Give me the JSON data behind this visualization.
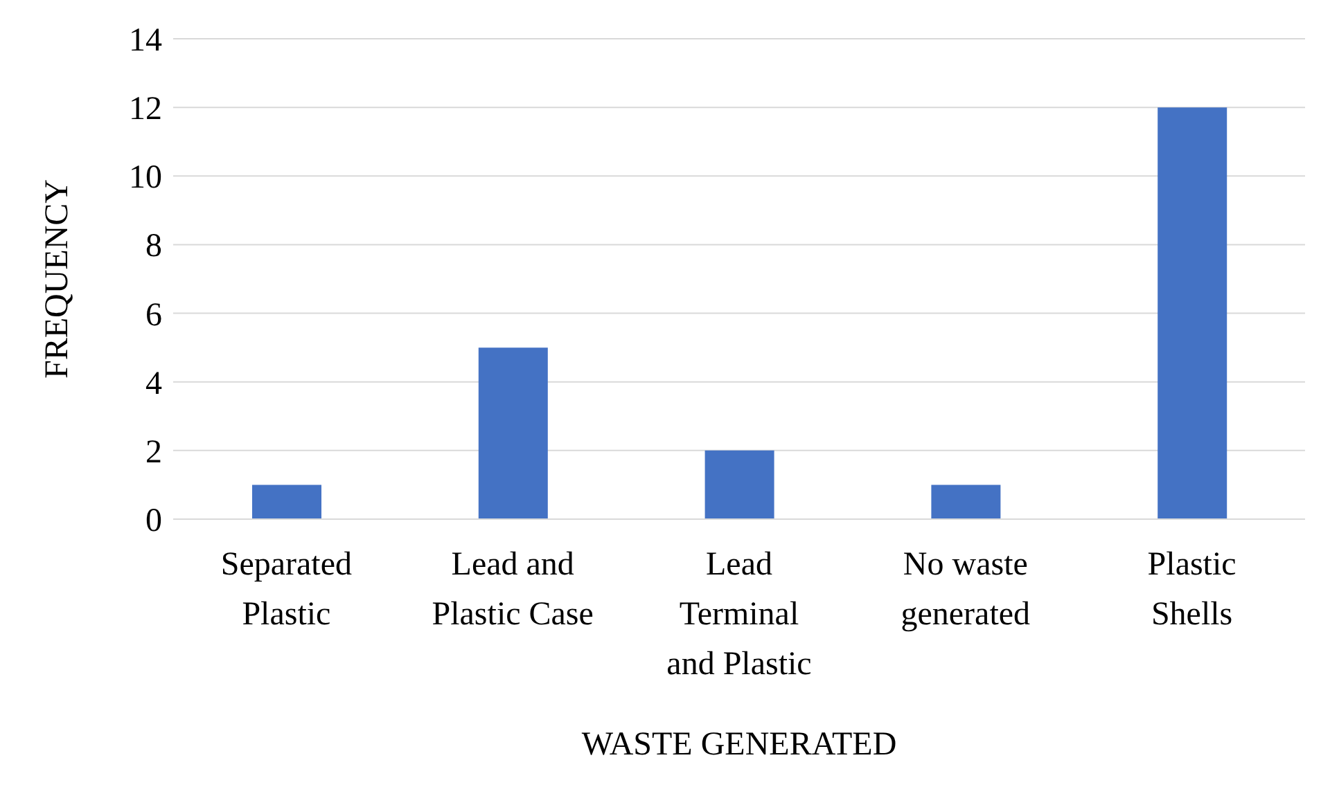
{
  "chart_data": {
    "type": "bar",
    "xlabel": "WASTE GENERATED",
    "ylabel": "FREQUENCY",
    "categories": [
      "Separated Plastic",
      "Lead and Plastic Case",
      "Lead Terminal and Plastic",
      "No waste generated",
      "Plastic Shells"
    ],
    "values": [
      1,
      5,
      2,
      1,
      12
    ],
    "color": "#4472c4",
    "ylim": [
      0,
      14
    ],
    "yticks": [
      0,
      2,
      4,
      6,
      8,
      10,
      12,
      14
    ],
    "grid": "y"
  }
}
